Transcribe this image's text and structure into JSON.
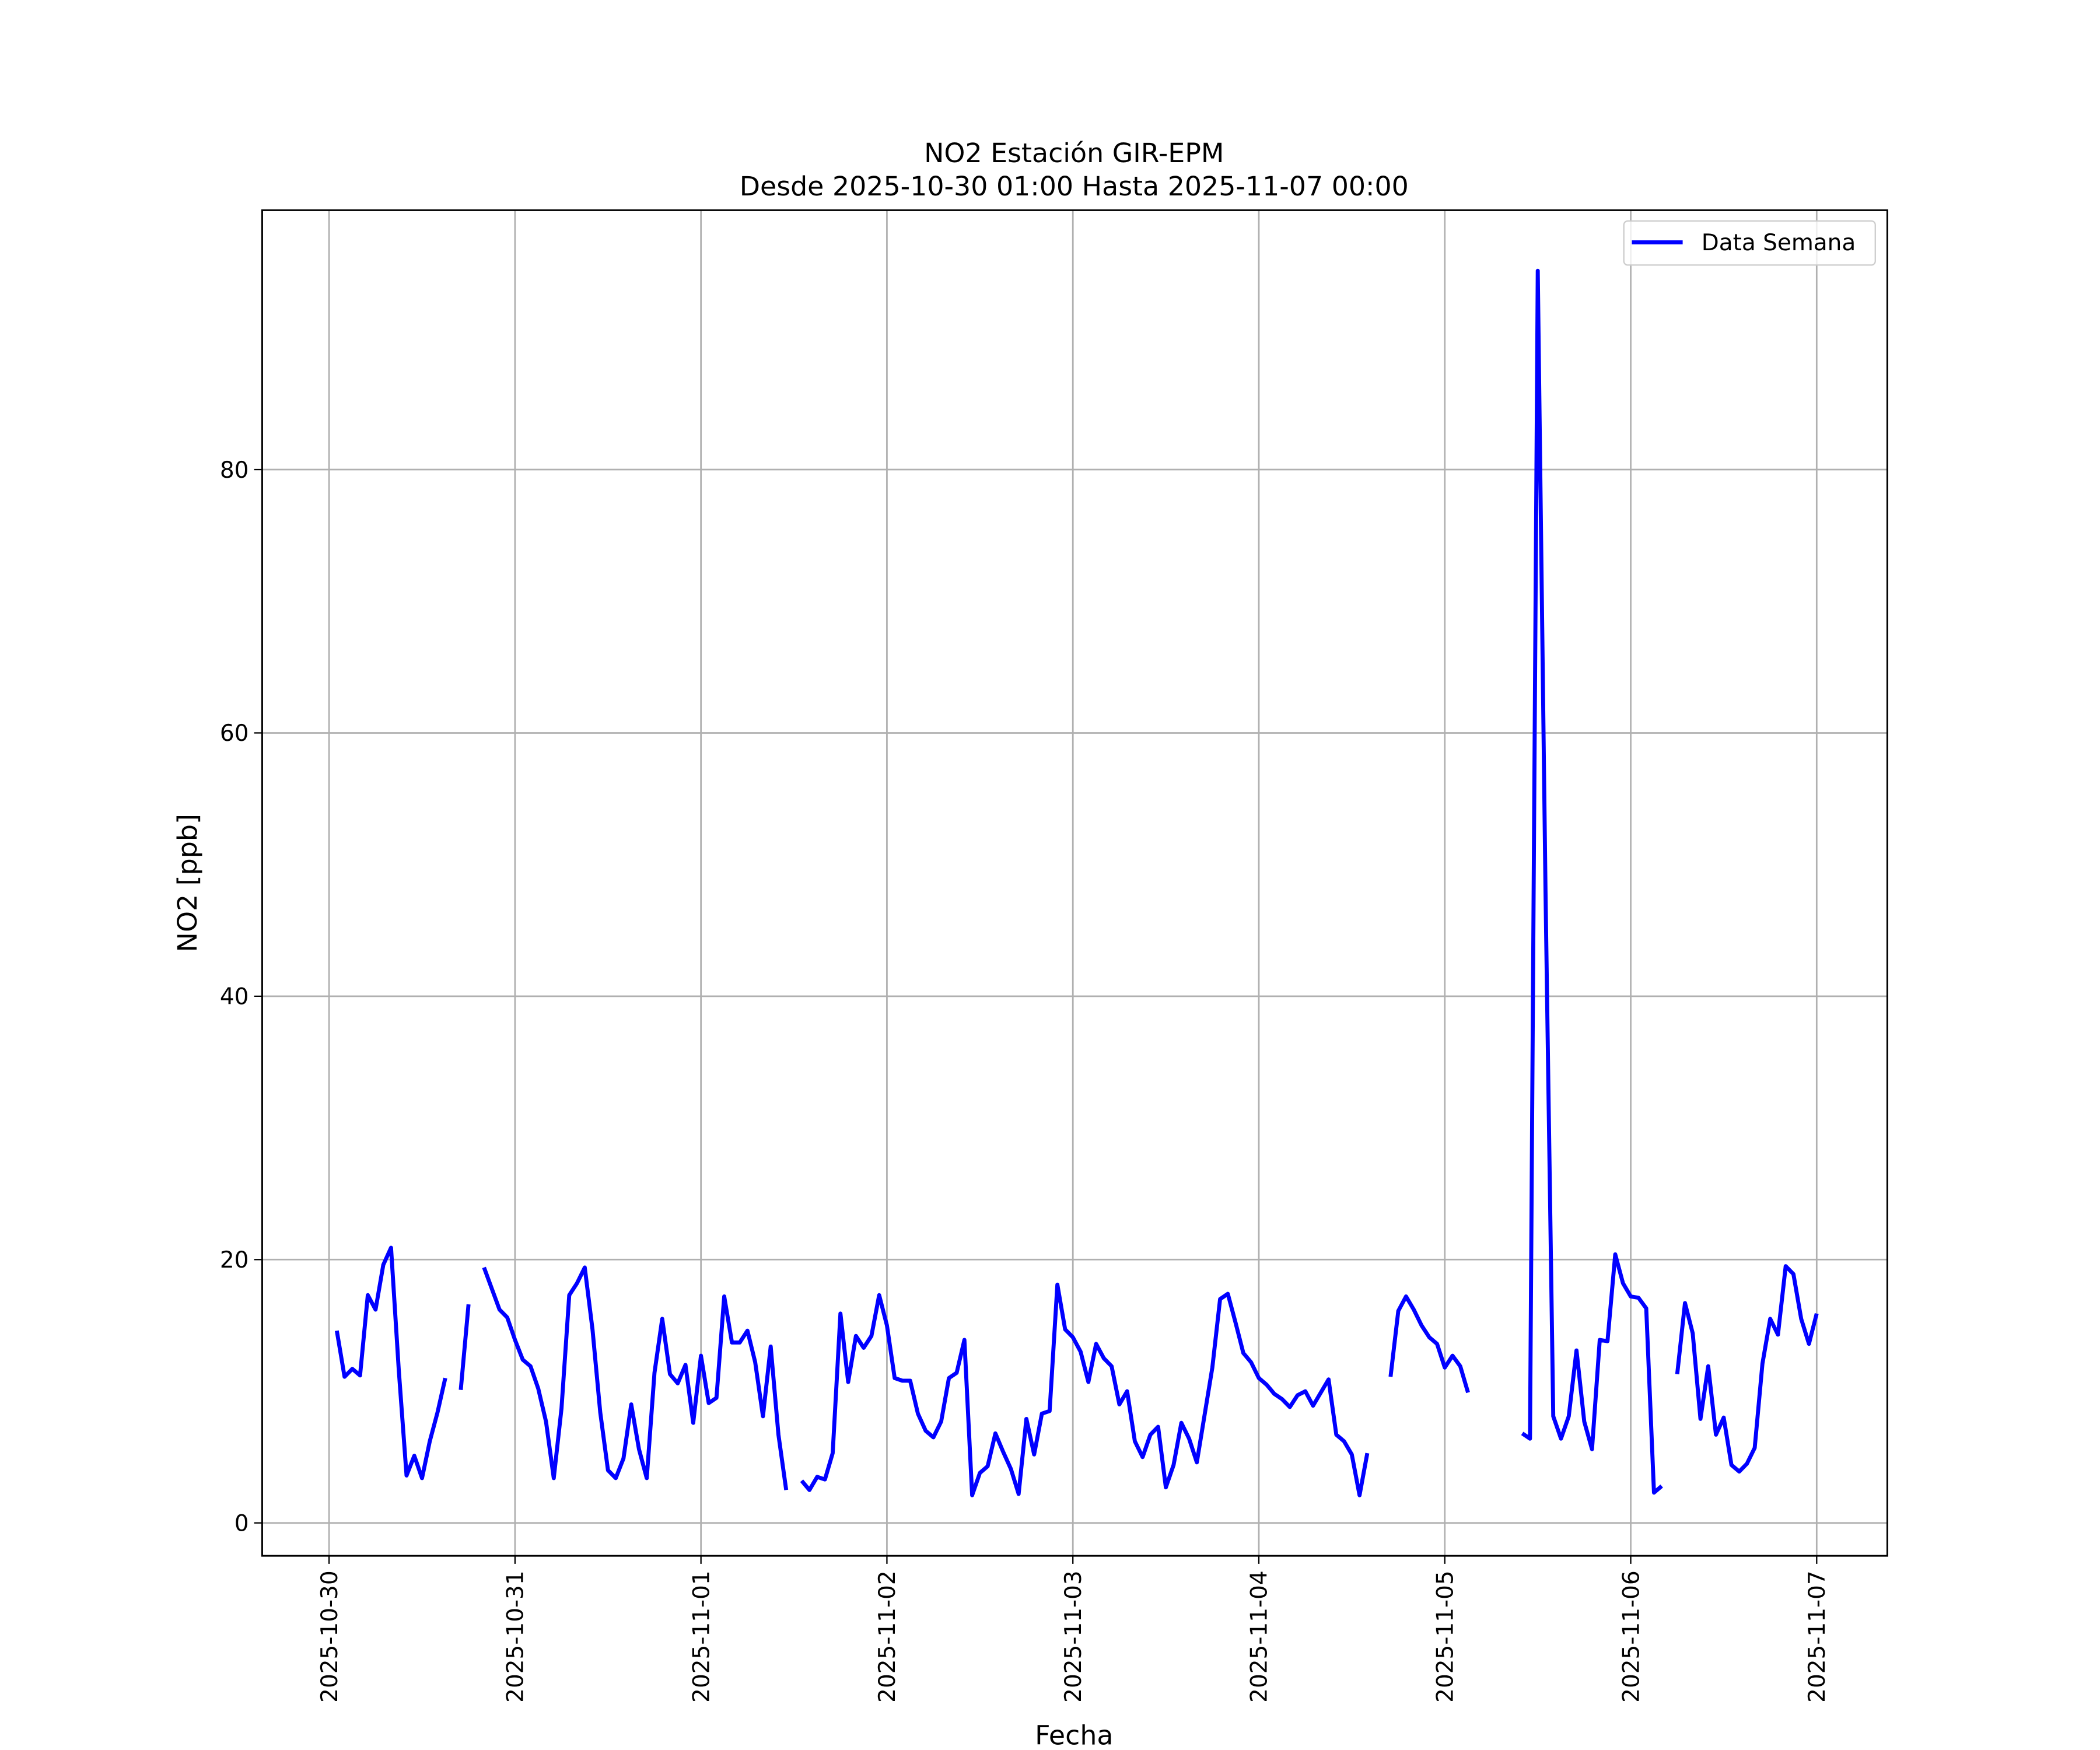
{
  "chart_data": {
    "type": "line",
    "title": "NO2 Estación GIR-EPM",
    "subtitle": "Desde 2025-10-30 01:00 Hasta 2025-11-07 00:00",
    "x_label": "Fecha",
    "y_label": "NO2 [ppb]",
    "x": [
      "2025-10-30 01:00",
      "2025-10-30 02:00",
      "2025-10-30 03:00",
      "2025-10-30 04:00",
      "2025-10-30 05:00",
      "2025-10-30 06:00",
      "2025-10-30 07:00",
      "2025-10-30 08:00",
      "2025-10-30 09:00",
      "2025-10-30 10:00",
      "2025-10-30 11:00",
      "2025-10-30 12:00",
      "2025-10-30 13:00",
      "2025-10-30 14:00",
      "2025-10-30 15:00",
      "2025-10-30 16:00",
      "2025-10-30 17:00",
      "2025-10-30 18:00",
      "2025-10-30 19:00",
      "2025-10-30 20:00",
      "2025-10-30 21:00",
      "2025-10-30 22:00",
      "2025-10-30 23:00",
      "2025-10-31 00:00",
      "2025-10-31 01:00",
      "2025-10-31 02:00",
      "2025-10-31 03:00",
      "2025-10-31 04:00",
      "2025-10-31 05:00",
      "2025-10-31 06:00",
      "2025-10-31 07:00",
      "2025-10-31 08:00",
      "2025-10-31 09:00",
      "2025-10-31 10:00",
      "2025-10-31 11:00",
      "2025-10-31 12:00",
      "2025-10-31 13:00",
      "2025-10-31 14:00",
      "2025-10-31 15:00",
      "2025-10-31 16:00",
      "2025-10-31 17:00",
      "2025-10-31 18:00",
      "2025-10-31 19:00",
      "2025-10-31 20:00",
      "2025-10-31 21:00",
      "2025-10-31 22:00",
      "2025-10-31 23:00",
      "2025-11-01 00:00",
      "2025-11-01 01:00",
      "2025-11-01 02:00",
      "2025-11-01 03:00",
      "2025-11-01 04:00",
      "2025-11-01 05:00",
      "2025-11-01 06:00",
      "2025-11-01 07:00",
      "2025-11-01 08:00",
      "2025-11-01 09:00",
      "2025-11-01 10:00",
      "2025-11-01 11:00",
      "2025-11-01 12:00",
      "2025-11-01 13:00",
      "2025-11-01 14:00",
      "2025-11-01 15:00",
      "2025-11-01 16:00",
      "2025-11-01 17:00",
      "2025-11-01 18:00",
      "2025-11-01 19:00",
      "2025-11-01 20:00",
      "2025-11-01 21:00",
      "2025-11-01 22:00",
      "2025-11-01 23:00",
      "2025-11-02 00:00",
      "2025-11-02 01:00",
      "2025-11-02 02:00",
      "2025-11-02 03:00",
      "2025-11-02 04:00",
      "2025-11-02 05:00",
      "2025-11-02 06:00",
      "2025-11-02 07:00",
      "2025-11-02 08:00",
      "2025-11-02 09:00",
      "2025-11-02 10:00",
      "2025-11-02 11:00",
      "2025-11-02 12:00",
      "2025-11-02 13:00",
      "2025-11-02 14:00",
      "2025-11-02 15:00",
      "2025-11-02 16:00",
      "2025-11-02 17:00",
      "2025-11-02 18:00",
      "2025-11-02 19:00",
      "2025-11-02 20:00",
      "2025-11-02 21:00",
      "2025-11-02 22:00",
      "2025-11-02 23:00",
      "2025-11-03 00:00",
      "2025-11-03 01:00",
      "2025-11-03 02:00",
      "2025-11-03 03:00",
      "2025-11-03 04:00",
      "2025-11-03 05:00",
      "2025-11-03 06:00",
      "2025-11-03 07:00",
      "2025-11-03 08:00",
      "2025-11-03 09:00",
      "2025-11-03 10:00",
      "2025-11-03 11:00",
      "2025-11-03 12:00",
      "2025-11-03 13:00",
      "2025-11-03 14:00",
      "2025-11-03 15:00",
      "2025-11-03 16:00",
      "2025-11-03 17:00",
      "2025-11-03 18:00",
      "2025-11-03 19:00",
      "2025-11-03 20:00",
      "2025-11-03 21:00",
      "2025-11-03 22:00",
      "2025-11-03 23:00",
      "2025-11-04 00:00",
      "2025-11-04 01:00",
      "2025-11-04 02:00",
      "2025-11-04 03:00",
      "2025-11-04 04:00",
      "2025-11-04 05:00",
      "2025-11-04 06:00",
      "2025-11-04 07:00",
      "2025-11-04 08:00",
      "2025-11-04 09:00",
      "2025-11-04 10:00",
      "2025-11-04 11:00",
      "2025-11-04 12:00",
      "2025-11-04 13:00",
      "2025-11-04 14:00",
      "2025-11-04 15:00",
      "2025-11-04 16:00",
      "2025-11-04 17:00",
      "2025-11-04 18:00",
      "2025-11-04 19:00",
      "2025-11-04 20:00",
      "2025-11-04 21:00",
      "2025-11-04 22:00",
      "2025-11-04 23:00",
      "2025-11-05 00:00",
      "2025-11-05 01:00",
      "2025-11-05 02:00",
      "2025-11-05 03:00",
      "2025-11-05 04:00",
      "2025-11-05 05:00",
      "2025-11-05 06:00",
      "2025-11-05 07:00",
      "2025-11-05 08:00",
      "2025-11-05 09:00",
      "2025-11-05 10:00",
      "2025-11-05 11:00",
      "2025-11-05 12:00",
      "2025-11-05 13:00",
      "2025-11-05 14:00",
      "2025-11-05 15:00",
      "2025-11-05 16:00",
      "2025-11-05 17:00",
      "2025-11-05 18:00",
      "2025-11-05 19:00",
      "2025-11-05 20:00",
      "2025-11-05 21:00",
      "2025-11-05 22:00",
      "2025-11-05 23:00",
      "2025-11-06 00:00",
      "2025-11-06 01:00",
      "2025-11-06 02:00",
      "2025-11-06 03:00",
      "2025-11-06 04:00",
      "2025-11-06 05:00",
      "2025-11-06 06:00",
      "2025-11-06 07:00",
      "2025-11-06 08:00",
      "2025-11-06 09:00",
      "2025-11-06 10:00",
      "2025-11-06 11:00",
      "2025-11-06 12:00",
      "2025-11-06 13:00",
      "2025-11-06 14:00",
      "2025-11-06 15:00",
      "2025-11-06 16:00",
      "2025-11-06 17:00",
      "2025-11-06 18:00",
      "2025-11-06 19:00",
      "2025-11-06 20:00",
      "2025-11-06 21:00",
      "2025-11-06 22:00",
      "2025-11-06 23:00",
      "2025-11-07 00:00"
    ],
    "series": [
      {
        "name": "Data Semana",
        "color": "#0000ff",
        "values": [
          14.6,
          11.1,
          11.7,
          11.2,
          17.3,
          16.2,
          19.6,
          20.9,
          11.6,
          3.6,
          5.1,
          3.4,
          6.2,
          8.4,
          11.0,
          null,
          10.1,
          16.6,
          null,
          19.4,
          17.8,
          16.2,
          15.6,
          13.9,
          12.4,
          11.9,
          10.2,
          7.7,
          3.4,
          8.7,
          17.3,
          18.2,
          19.4,
          14.7,
          8.4,
          4.0,
          3.4,
          4.9,
          9.0,
          5.6,
          3.4,
          11.4,
          15.5,
          11.3,
          10.6,
          12.0,
          7.6,
          12.7,
          9.1,
          9.5,
          17.2,
          13.7,
          13.7,
          14.6,
          12.2,
          8.1,
          13.4,
          6.7,
          2.5,
          null,
          3.2,
          2.5,
          3.5,
          3.3,
          5.3,
          15.9,
          10.7,
          14.2,
          13.3,
          14.2,
          17.3,
          15.0,
          11.0,
          10.8,
          10.8,
          8.3,
          7.0,
          6.5,
          7.7,
          11.0,
          11.4,
          13.9,
          2.1,
          3.8,
          4.3,
          6.8,
          5.4,
          4.1,
          2.2,
          7.9,
          5.2,
          8.3,
          8.5,
          18.1,
          14.7,
          14.1,
          13.0,
          10.7,
          13.6,
          12.5,
          11.9,
          9.0,
          10.0,
          6.2,
          5.0,
          6.7,
          7.3,
          2.7,
          4.4,
          7.6,
          6.4,
          4.6,
          8.2,
          11.8,
          17.0,
          17.4,
          15.2,
          12.9,
          12.2,
          11.0,
          10.5,
          9.8,
          9.4,
          8.8,
          9.7,
          10.0,
          8.9,
          9.9,
          10.9,
          6.7,
          6.2,
          5.2,
          2.1,
          5.3,
          null,
          null,
          11.1,
          16.1,
          17.2,
          16.2,
          15.0,
          14.1,
          13.6,
          11.8,
          12.7,
          11.9,
          9.9,
          null,
          null,
          null,
          null,
          null,
          null,
          6.8,
          6.4,
          95.1,
          48,
          8.1,
          6.4,
          8.1,
          13.1,
          7.7,
          5.6,
          13.9,
          13.8,
          20.4,
          18.2,
          17.2,
          17.1,
          16.3,
          2.3,
          2.8,
          null,
          11.3,
          16.7,
          14.4,
          7.9,
          11.9,
          6.7,
          8.0,
          4.4,
          3.9,
          4.5,
          5.7,
          12.1,
          15.5,
          14.3,
          19.5,
          18.9,
          15.5,
          13.6,
          15.9
        ]
      }
    ],
    "xlim": [
      "2025-10-29 15:22",
      "2025-11-07 09:07"
    ],
    "xticks": [
      "2025-10-30",
      "2025-10-31",
      "2025-11-01",
      "2025-11-02",
      "2025-11-03",
      "2025-11-04",
      "2025-11-05",
      "2025-11-06",
      "2025-11-07"
    ],
    "ylim": [
      -2.5,
      99.7
    ],
    "yticks": [
      0,
      20,
      40,
      60,
      80
    ],
    "grid": true,
    "legend": "upper right"
  }
}
